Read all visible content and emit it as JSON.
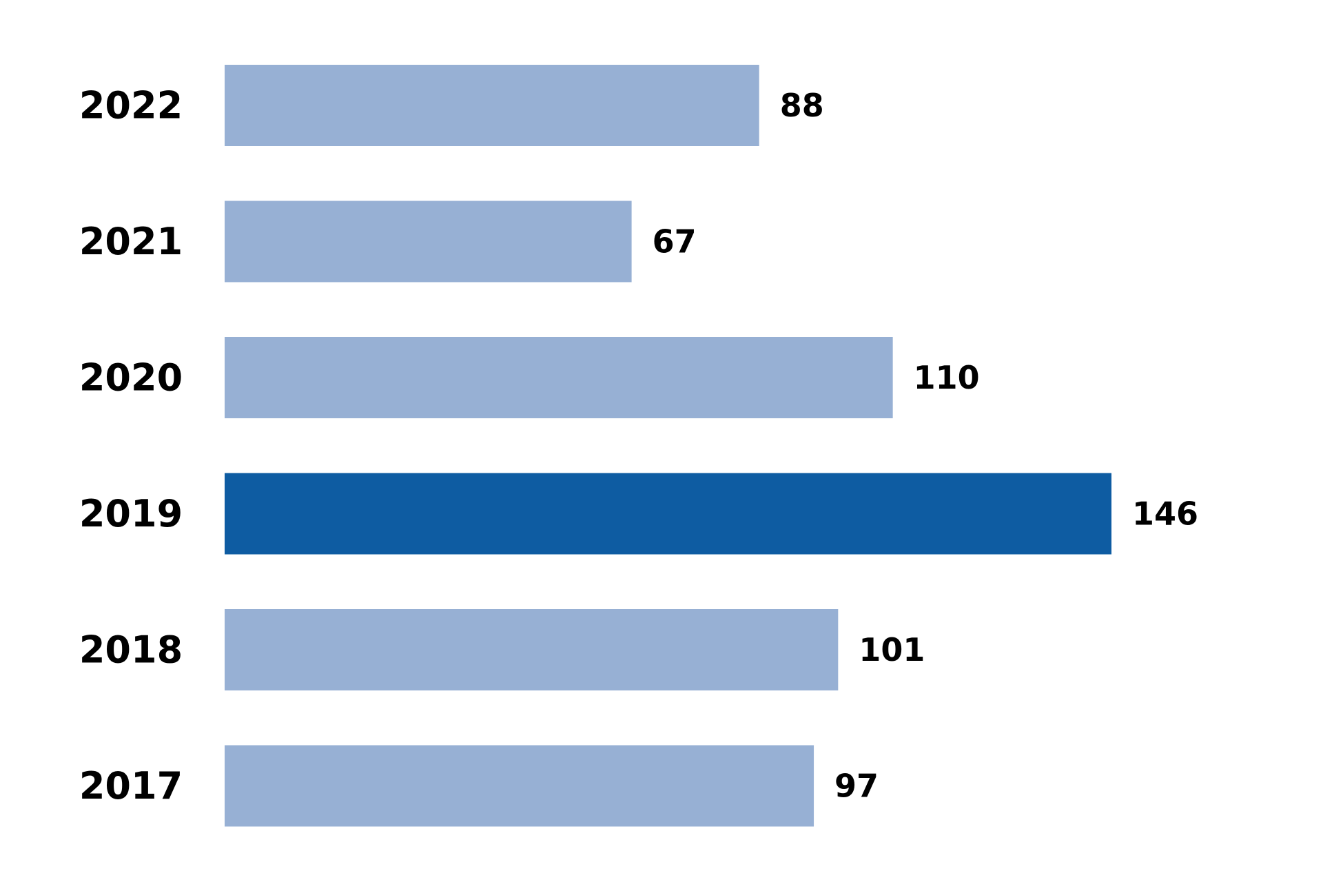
{
  "chart_data": {
    "type": "bar",
    "orientation": "horizontal",
    "categories": [
      "2022",
      "2021",
      "2020",
      "2019",
      "2018",
      "2017"
    ],
    "values": [
      88,
      67,
      110,
      146,
      101,
      97
    ],
    "value_labels": [
      "88",
      "67",
      "110",
      "146",
      "101",
      "97"
    ],
    "highlight_category": "2019",
    "colors": {
      "bar": "#97b0d4",
      "highlight": "#0e5ca2",
      "text": "#000000",
      "background": "#ffffff"
    },
    "xlim": [
      0,
      146
    ],
    "grid": false,
    "legend": "none"
  }
}
